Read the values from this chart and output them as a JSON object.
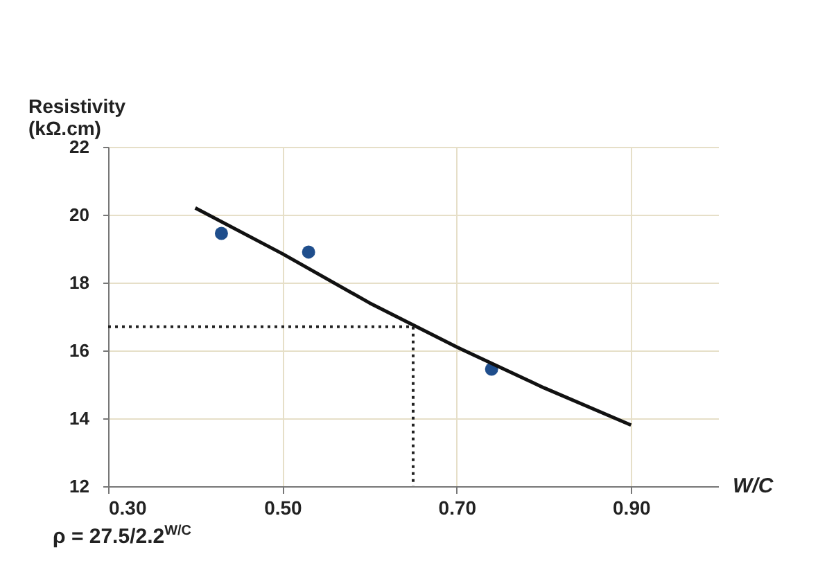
{
  "chart_data": {
    "type": "scatter",
    "ylabel": "Resistivity\n(kΩ.cm)",
    "xlabel": "W/C",
    "xlim": [
      0.3,
      1.0
    ],
    "xticks": [
      {
        "value": 0.3,
        "label": "0.30"
      },
      {
        "value": 0.5,
        "label": "0.50"
      },
      {
        "value": 0.7,
        "label": "0.70"
      },
      {
        "value": 0.9,
        "label": "0.90"
      }
    ],
    "ylim": [
      12,
      22
    ],
    "yticks": [
      12,
      14,
      16,
      18,
      20,
      22
    ],
    "grid": true,
    "marker": "circle",
    "series": [
      {
        "color": "#1f4e8c",
        "x": [
          0.43,
          0.53,
          0.74
        ],
        "values": [
          19.45,
          18.9,
          15.45
        ]
      },
      {
        "type": "line",
        "color": "#111111",
        "line_style": "solid",
        "marker": "none",
        "x": [
          0.4,
          0.5,
          0.6,
          0.7,
          0.8,
          0.9
        ],
        "values": [
          20.2,
          18.85,
          17.4,
          16.1,
          14.9,
          13.8
        ]
      },
      {
        "type": "line",
        "color": "#222222",
        "line_style": "dotted",
        "marker": "none",
        "x": [
          0.3,
          0.65,
          0.65
        ],
        "values": [
          16.7,
          16.7,
          12
        ]
      }
    ],
    "annotations": [
      "ρ = 27.5/2.2$^{W/C}$"
    ]
  }
}
